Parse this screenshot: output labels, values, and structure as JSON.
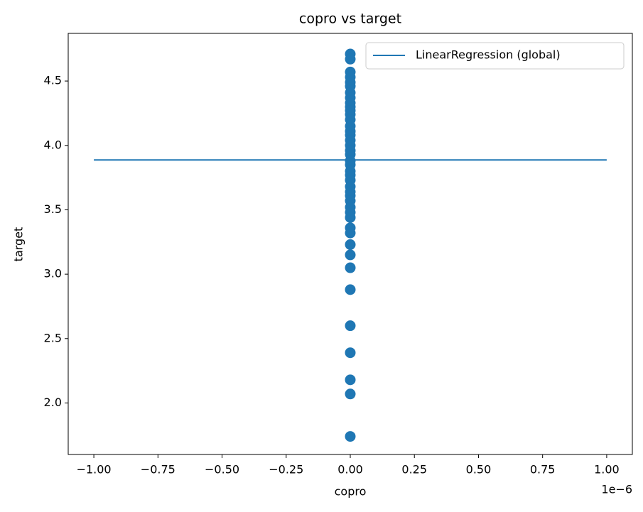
{
  "chart_data": {
    "type": "scatter",
    "title": "copro vs target",
    "x_label": "copro",
    "y_label": "target",
    "x_scale_label": "1e−6",
    "xlim": [
      -1.1,
      1.1
    ],
    "ylim": [
      1.6,
      4.87
    ],
    "xticks": [
      {
        "value": -1,
        "label": "−1.00"
      },
      {
        "value": -0.75,
        "label": "−0.75"
      },
      {
        "value": -0.5,
        "label": "−0.50"
      },
      {
        "value": -0.25,
        "label": "−0.25"
      },
      {
        "value": 0,
        "label": "0.00"
      },
      {
        "value": 0.25,
        "label": "0.25"
      },
      {
        "value": 0.5,
        "label": "0.50"
      },
      {
        "value": 0.75,
        "label": "0.75"
      },
      {
        "value": 1,
        "label": "1.00"
      }
    ],
    "yticks": [
      {
        "value": 2,
        "label": "2.0"
      },
      2.5,
      {
        "value": 3,
        "label": "3.0"
      },
      3.5,
      {
        "value": 4,
        "label": "4.0"
      },
      4.5
    ],
    "grid": false,
    "legend": "upper right",
    "series": [
      {
        "name": "LinearRegression (global)",
        "type": "line",
        "color": "#1f77b4",
        "x": [
          -1,
          1
        ],
        "values": [
          3.887,
          3.887
        ]
      },
      {
        "type": "scatter",
        "color": "#1f77b4",
        "x": [
          0,
          0,
          0,
          0,
          0,
          0,
          0,
          0,
          0,
          0,
          0,
          0,
          0,
          0,
          0,
          0,
          0,
          0,
          0,
          0,
          0,
          0,
          0,
          0,
          0,
          0,
          0,
          0,
          0,
          0,
          0,
          0,
          0,
          0,
          0,
          0,
          0,
          0,
          0,
          0,
          0,
          0,
          0
        ],
        "values": [
          4.71,
          4.67,
          4.57,
          4.53,
          4.49,
          4.46,
          4.41,
          4.37,
          4.33,
          4.3,
          4.27,
          4.24,
          4.2,
          4.15,
          4.11,
          4.08,
          4.04,
          4.0,
          3.96,
          3.93,
          3.88,
          3.85,
          3.8,
          3.77,
          3.73,
          3.68,
          3.64,
          3.61,
          3.57,
          3.52,
          3.48,
          3.44,
          3.36,
          3.32,
          3.23,
          3.15,
          3.05,
          2.88,
          2.6,
          2.39,
          2.18,
          2.07,
          1.74
        ]
      }
    ]
  }
}
